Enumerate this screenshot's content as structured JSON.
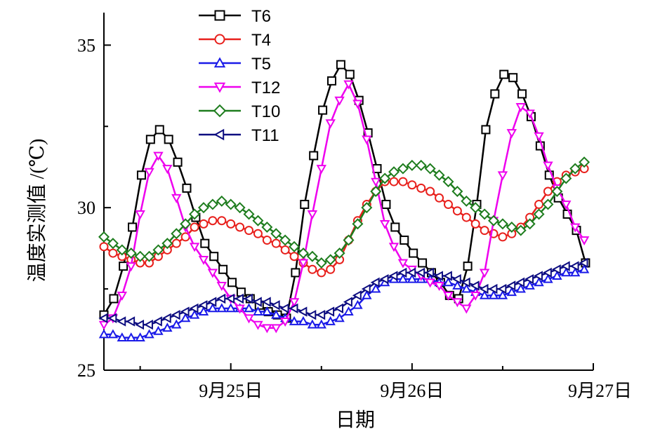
{
  "chart_data": {
    "type": "line",
    "xlabel": "日期",
    "ylabel": "温度实测值 /(℃)",
    "ylim": [
      25,
      36
    ],
    "yticks": [
      "25",
      "30",
      "35"
    ],
    "xticks": [
      "9月25日",
      "9月26日",
      "9月27日"
    ],
    "xlim": [
      24.3,
      27.0
    ],
    "grid": false,
    "legend_position": "top-left",
    "series": [
      {
        "name": "T6",
        "color": "#000000",
        "marker": "square",
        "x": [
          24.3,
          24.354,
          24.407,
          24.457,
          24.507,
          24.557,
          24.607,
          24.657,
          24.707,
          24.757,
          24.807,
          24.857,
          24.907,
          24.957,
          25.007,
          25.057,
          25.107,
          25.157,
          25.207,
          25.257,
          25.307,
          25.357,
          25.407,
          25.457,
          25.507,
          25.557,
          25.607,
          25.657,
          25.707,
          25.757,
          25.807,
          25.857,
          25.907,
          25.957,
          26.007,
          26.057,
          26.107,
          26.157,
          26.207,
          26.257,
          26.307,
          26.357,
          26.407,
          26.457,
          26.507,
          26.557,
          26.607,
          26.657,
          26.707,
          26.757,
          26.807,
          26.857,
          26.907,
          26.957
        ],
        "y": [
          26.7,
          27.2,
          28.2,
          29.4,
          31.0,
          32.1,
          32.4,
          32.1,
          31.4,
          30.6,
          29.7,
          28.9,
          28.5,
          28.1,
          27.7,
          27.4,
          27.2,
          27.0,
          26.8,
          26.7,
          26.6,
          28.0,
          30.1,
          31.6,
          33.0,
          33.9,
          34.4,
          34.1,
          33.3,
          32.3,
          31.2,
          30.1,
          29.4,
          29.0,
          28.6,
          28.3,
          28.0,
          27.7,
          27.3,
          27.2,
          28.2,
          30.1,
          32.4,
          33.5,
          34.1,
          34.0,
          33.5,
          32.8,
          31.9,
          31.0,
          30.3,
          29.8,
          29.3,
          28.3
        ]
      },
      {
        "name": "T4",
        "color": "#e8201c",
        "marker": "circle",
        "x": [
          24.3,
          24.35,
          24.4,
          24.45,
          24.5,
          24.55,
          24.6,
          24.65,
          24.7,
          24.75,
          24.8,
          24.85,
          24.9,
          24.95,
          25.0,
          25.05,
          25.1,
          25.15,
          25.2,
          25.25,
          25.3,
          25.35,
          25.4,
          25.45,
          25.5,
          25.55,
          25.6,
          25.65,
          25.7,
          25.75,
          25.8,
          25.85,
          25.9,
          25.95,
          26.0,
          26.05,
          26.1,
          26.15,
          26.2,
          26.25,
          26.3,
          26.35,
          26.4,
          26.45,
          26.5,
          26.55,
          26.6,
          26.65,
          26.7,
          26.75,
          26.8,
          26.85,
          26.9,
          26.95
        ],
        "y": [
          28.8,
          28.6,
          28.5,
          28.4,
          28.3,
          28.3,
          28.5,
          28.7,
          28.9,
          29.1,
          29.4,
          29.5,
          29.6,
          29.6,
          29.5,
          29.4,
          29.3,
          29.2,
          29.0,
          28.9,
          28.7,
          28.5,
          28.3,
          28.1,
          28.0,
          28.1,
          28.4,
          29.0,
          29.6,
          30.1,
          30.5,
          30.8,
          30.8,
          30.8,
          30.7,
          30.6,
          30.5,
          30.3,
          30.1,
          29.9,
          29.7,
          29.5,
          29.3,
          29.2,
          29.1,
          29.2,
          29.4,
          29.7,
          30.1,
          30.5,
          30.8,
          31.0,
          31.1,
          31.2
        ]
      },
      {
        "name": "T5",
        "color": "#1a1ae8",
        "marker": "triangle-up",
        "x": [
          24.3,
          24.35,
          24.4,
          24.45,
          24.5,
          24.55,
          24.6,
          24.65,
          24.7,
          24.75,
          24.8,
          24.85,
          24.9,
          24.95,
          25.0,
          25.05,
          25.1,
          25.15,
          25.2,
          25.25,
          25.3,
          25.35,
          25.4,
          25.45,
          25.5,
          25.55,
          25.6,
          25.65,
          25.7,
          25.75,
          25.8,
          25.85,
          25.9,
          25.95,
          26.0,
          26.05,
          26.1,
          26.15,
          26.2,
          26.25,
          26.3,
          26.35,
          26.4,
          26.45,
          26.5,
          26.55,
          26.6,
          26.65,
          26.7,
          26.75,
          26.8,
          26.85,
          26.9,
          26.95
        ],
        "y": [
          26.1,
          26.1,
          26.0,
          26.0,
          26.0,
          26.1,
          26.2,
          26.3,
          26.4,
          26.6,
          26.7,
          26.8,
          26.9,
          26.9,
          26.9,
          26.9,
          26.9,
          26.8,
          26.8,
          26.7,
          26.6,
          26.5,
          26.5,
          26.4,
          26.4,
          26.5,
          26.6,
          26.8,
          27.0,
          27.3,
          27.5,
          27.7,
          27.8,
          27.8,
          27.8,
          27.8,
          27.8,
          27.7,
          27.7,
          27.6,
          27.5,
          27.4,
          27.3,
          27.3,
          27.3,
          27.4,
          27.5,
          27.6,
          27.7,
          27.8,
          27.9,
          28.0,
          28.0,
          28.1
        ]
      },
      {
        "name": "T12",
        "color": "#ee00ee",
        "marker": "triangle-down",
        "x": [
          24.3,
          24.35,
          24.4,
          24.45,
          24.5,
          24.55,
          24.6,
          24.65,
          24.7,
          24.75,
          24.8,
          24.85,
          24.9,
          24.95,
          25.0,
          25.05,
          25.1,
          25.15,
          25.2,
          25.25,
          25.3,
          25.35,
          25.4,
          25.45,
          25.5,
          25.55,
          25.6,
          25.65,
          25.7,
          25.75,
          25.8,
          25.85,
          25.9,
          25.95,
          26.0,
          26.05,
          26.1,
          26.15,
          26.2,
          26.25,
          26.3,
          26.35,
          26.4,
          26.45,
          26.5,
          26.55,
          26.6,
          26.65,
          26.7,
          26.75,
          26.8,
          26.85,
          26.9,
          26.95
        ],
        "y": [
          26.4,
          26.6,
          27.3,
          28.2,
          29.8,
          31.1,
          31.6,
          31.2,
          30.3,
          29.4,
          28.8,
          28.4,
          28.0,
          27.6,
          27.2,
          26.9,
          26.6,
          26.4,
          26.3,
          26.3,
          26.5,
          27.1,
          28.3,
          29.8,
          31.2,
          32.6,
          33.3,
          33.8,
          33.2,
          32.1,
          30.8,
          29.5,
          28.8,
          28.3,
          28.1,
          27.9,
          27.7,
          27.6,
          27.3,
          27.1,
          26.9,
          27.3,
          28.0,
          29.6,
          31.0,
          32.3,
          33.1,
          32.9,
          32.2,
          31.3,
          30.6,
          30.1,
          29.4,
          29.0
        ]
      },
      {
        "name": "T10",
        "color": "#1e7d1e",
        "marker": "diamond",
        "x": [
          24.3,
          24.35,
          24.4,
          24.45,
          24.5,
          24.55,
          24.6,
          24.65,
          24.7,
          24.75,
          24.8,
          24.85,
          24.9,
          24.95,
          25.0,
          25.05,
          25.1,
          25.15,
          25.2,
          25.25,
          25.3,
          25.35,
          25.4,
          25.45,
          25.5,
          25.55,
          25.6,
          25.65,
          25.7,
          25.75,
          25.8,
          25.85,
          25.9,
          25.95,
          26.0,
          26.05,
          26.1,
          26.15,
          26.2,
          26.25,
          26.3,
          26.35,
          26.4,
          26.45,
          26.5,
          26.55,
          26.6,
          26.65,
          26.7,
          26.75,
          26.8,
          26.85,
          26.9,
          26.95
        ],
        "y": [
          29.1,
          28.9,
          28.7,
          28.6,
          28.5,
          28.5,
          28.7,
          28.9,
          29.2,
          29.5,
          29.8,
          30.0,
          30.1,
          30.2,
          30.1,
          30.0,
          29.8,
          29.6,
          29.4,
          29.2,
          29.0,
          28.8,
          28.6,
          28.5,
          28.3,
          28.4,
          28.6,
          29.0,
          29.5,
          30.0,
          30.5,
          30.9,
          31.1,
          31.2,
          31.3,
          31.3,
          31.2,
          31.0,
          30.8,
          30.5,
          30.2,
          30.0,
          29.8,
          29.6,
          29.5,
          29.4,
          29.3,
          29.5,
          29.8,
          30.1,
          30.5,
          30.9,
          31.2,
          31.4
        ]
      },
      {
        "name": "T11",
        "color": "#0d0d80",
        "marker": "triangle-left",
        "x": [
          24.3,
          24.35,
          24.4,
          24.45,
          24.5,
          24.55,
          24.6,
          24.65,
          24.7,
          24.75,
          24.8,
          24.85,
          24.9,
          24.95,
          25.0,
          25.05,
          25.1,
          25.15,
          25.2,
          25.25,
          25.3,
          25.35,
          25.4,
          25.45,
          25.5,
          25.55,
          25.6,
          25.65,
          25.7,
          25.75,
          25.8,
          25.85,
          25.9,
          25.95,
          26.0,
          26.05,
          26.1,
          26.15,
          26.2,
          26.25,
          26.3,
          26.35,
          26.4,
          26.45,
          26.5,
          26.55,
          26.6,
          26.65,
          26.7,
          26.75,
          26.8,
          26.85,
          26.9,
          26.95
        ],
        "y": [
          26.6,
          26.6,
          26.5,
          26.5,
          26.4,
          26.4,
          26.5,
          26.6,
          26.7,
          26.8,
          26.9,
          27.0,
          27.1,
          27.2,
          27.2,
          27.2,
          27.2,
          27.1,
          27.1,
          27.0,
          26.9,
          26.9,
          26.8,
          26.7,
          26.7,
          26.8,
          26.9,
          27.1,
          27.3,
          27.5,
          27.7,
          27.8,
          27.9,
          28.0,
          28.0,
          28.0,
          28.0,
          27.9,
          27.9,
          27.8,
          27.7,
          27.6,
          27.5,
          27.5,
          27.5,
          27.6,
          27.7,
          27.8,
          27.9,
          28.0,
          28.1,
          28.2,
          28.2,
          28.3
        ]
      }
    ]
  }
}
